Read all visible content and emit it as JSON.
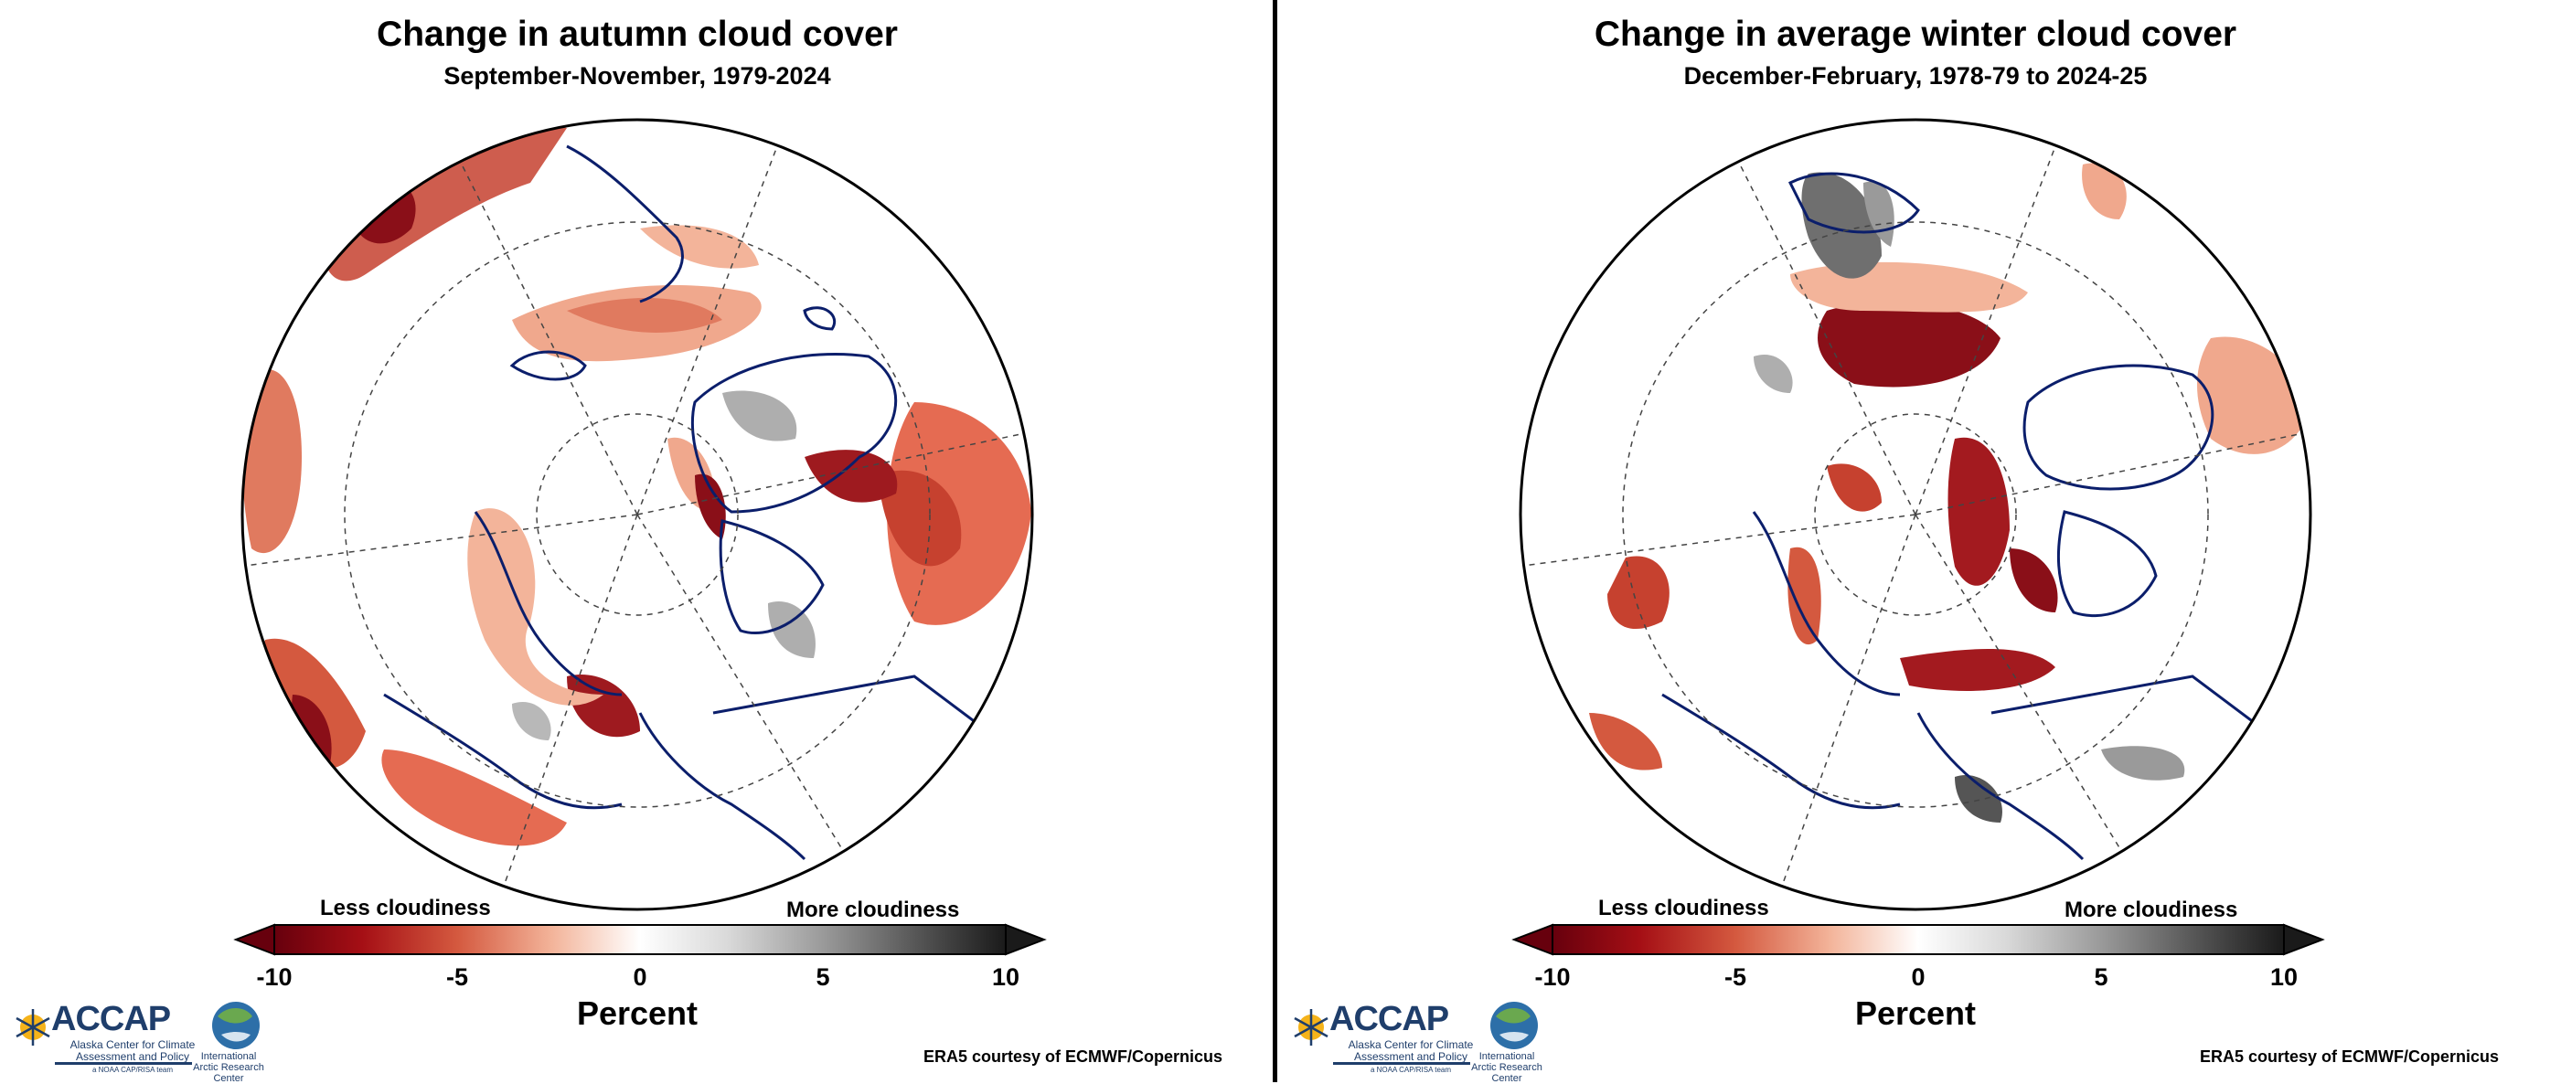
{
  "colors": {
    "strong_decrease": "#7f0a14",
    "moderate_decrease": "#d4593f",
    "weak_decrease": "#f3b49a",
    "neutral": "#ffffff",
    "increase": "#555555",
    "coastline": "#0b1e6b",
    "accap_blue": "#1f3e6b"
  },
  "panels": [
    {
      "title": "Change in autumn cloud cover",
      "subtitle": "September-November, 1979-2024"
    },
    {
      "title": "Change in average winter cloud cover",
      "subtitle": "December-February, 1978-79 to 2024-25"
    }
  ],
  "colorbar": {
    "less_label": "Less cloudiness",
    "more_label": "More cloudiness",
    "ticks": [
      "-10",
      "-5",
      "0",
      "5",
      "10"
    ],
    "unit_label": "Percent"
  },
  "logos": {
    "accap_name": "ACCAP",
    "accap_subtitle": "Alaska Center for Climate Assessment and Policy",
    "accap_tagline": "a NOAA CAP/RISA team",
    "iarc_name": "International Arctic Research Center"
  },
  "credit": "ERA5 courtesy of ECMWF/Copernicus"
}
